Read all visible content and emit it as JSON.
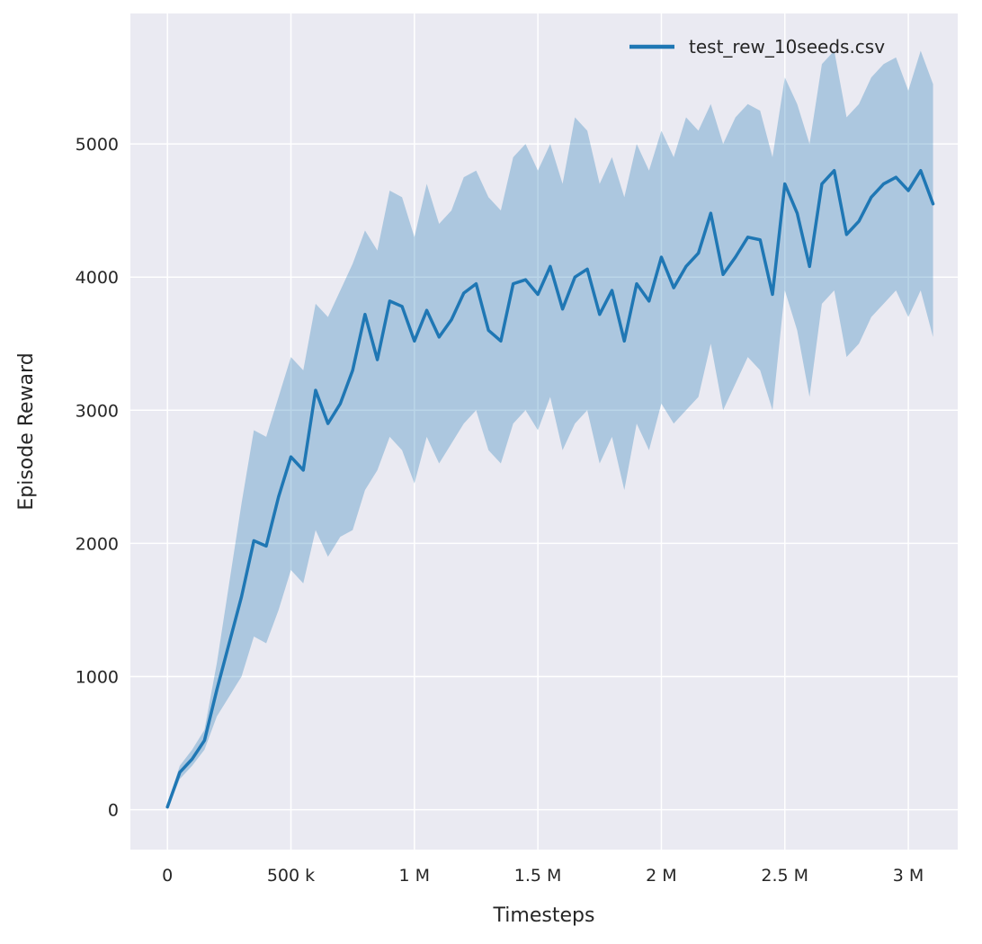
{
  "figure": {
    "background": "#ffffff",
    "axes_background": "#eaeaf2",
    "grid_color": "#ffffff",
    "text_color": "#262626"
  },
  "chart_data": {
    "type": "line",
    "title": "",
    "xlabel": "Timesteps",
    "ylabel": "Episode Reward",
    "grid": true,
    "legend_position": "upper right",
    "legend": [
      {
        "label": "test_rew_10seeds.csv",
        "color": "#1f77b4"
      }
    ],
    "xlim": [
      -150000,
      3200000
    ],
    "ylim": [
      -300,
      5980
    ],
    "x_ticks": [
      {
        "value": 0,
        "label": "0"
      },
      {
        "value": 500000,
        "label": "500 k"
      },
      {
        "value": 1000000,
        "label": "1 M"
      },
      {
        "value": 1500000,
        "label": "1.5 M"
      },
      {
        "value": 2000000,
        "label": "2 M"
      },
      {
        "value": 2500000,
        "label": "2.5 M"
      },
      {
        "value": 3000000,
        "label": "3 M"
      }
    ],
    "y_ticks": [
      {
        "value": 0,
        "label": "0"
      },
      {
        "value": 1000,
        "label": "1000"
      },
      {
        "value": 2000,
        "label": "2000"
      },
      {
        "value": 3000,
        "label": "3000"
      },
      {
        "value": 4000,
        "label": "4000"
      },
      {
        "value": 5000,
        "label": "5000"
      }
    ],
    "series": [
      {
        "name": "test_rew_10seeds.csv",
        "color": "#1f77b4",
        "band_opacity": 0.3,
        "x": [
          0,
          50000,
          100000,
          150000,
          200000,
          250000,
          300000,
          350000,
          400000,
          450000,
          500000,
          550000,
          600000,
          650000,
          700000,
          750000,
          800000,
          850000,
          900000,
          950000,
          1000000,
          1050000,
          1100000,
          1150000,
          1200000,
          1250000,
          1300000,
          1350000,
          1400000,
          1450000,
          1500000,
          1550000,
          1600000,
          1650000,
          1700000,
          1750000,
          1800000,
          1850000,
          1900000,
          1950000,
          2000000,
          2050000,
          2100000,
          2150000,
          2200000,
          2250000,
          2300000,
          2350000,
          2400000,
          2450000,
          2500000,
          2550000,
          2600000,
          2650000,
          2700000,
          2750000,
          2800000,
          2850000,
          2900000,
          2950000,
          3000000,
          3050000,
          3100000
        ],
        "mean": [
          20,
          280,
          380,
          520,
          900,
          1250,
          1600,
          2020,
          1980,
          2350,
          2650,
          2550,
          3150,
          2900,
          3050,
          3300,
          3720,
          3380,
          3820,
          3780,
          3520,
          3750,
          3550,
          3680,
          3880,
          3950,
          3600,
          3520,
          3950,
          3980,
          3870,
          4080,
          3760,
          4000,
          4060,
          3720,
          3900,
          3520,
          3950,
          3820,
          4150,
          3920,
          4080,
          4180,
          4480,
          4020,
          4150,
          4300,
          4280,
          3870,
          4700,
          4480,
          4080,
          4700,
          4800,
          4320,
          4420,
          4600,
          4700,
          4750,
          4650,
          4800,
          4550
        ],
        "lower": [
          0,
          230,
          330,
          450,
          700,
          850,
          1000,
          1300,
          1250,
          1500,
          1800,
          1700,
          2100,
          1900,
          2050,
          2100,
          2400,
          2550,
          2800,
          2700,
          2450,
          2800,
          2600,
          2750,
          2900,
          3000,
          2700,
          2600,
          2900,
          3000,
          2850,
          3100,
          2700,
          2900,
          3000,
          2600,
          2800,
          2400,
          2900,
          2700,
          3050,
          2900,
          3000,
          3100,
          3500,
          3000,
          3200,
          3400,
          3300,
          3000,
          3900,
          3600,
          3100,
          3800,
          3900,
          3400,
          3500,
          3700,
          3800,
          3900,
          3700,
          3900,
          3550
        ],
        "upper": [
          40,
          330,
          450,
          600,
          1100,
          1700,
          2300,
          2850,
          2800,
          3100,
          3400,
          3300,
          3800,
          3700,
          3900,
          4100,
          4350,
          4200,
          4650,
          4600,
          4300,
          4700,
          4400,
          4500,
          4750,
          4800,
          4600,
          4500,
          4900,
          5000,
          4800,
          5000,
          4700,
          5200,
          5100,
          4700,
          4900,
          4600,
          5000,
          4800,
          5100,
          4900,
          5200,
          5100,
          5300,
          5000,
          5200,
          5300,
          5250,
          4900,
          5500,
          5300,
          5000,
          5600,
          5700,
          5200,
          5300,
          5500,
          5600,
          5650,
          5400,
          5700,
          5450
        ]
      }
    ]
  }
}
